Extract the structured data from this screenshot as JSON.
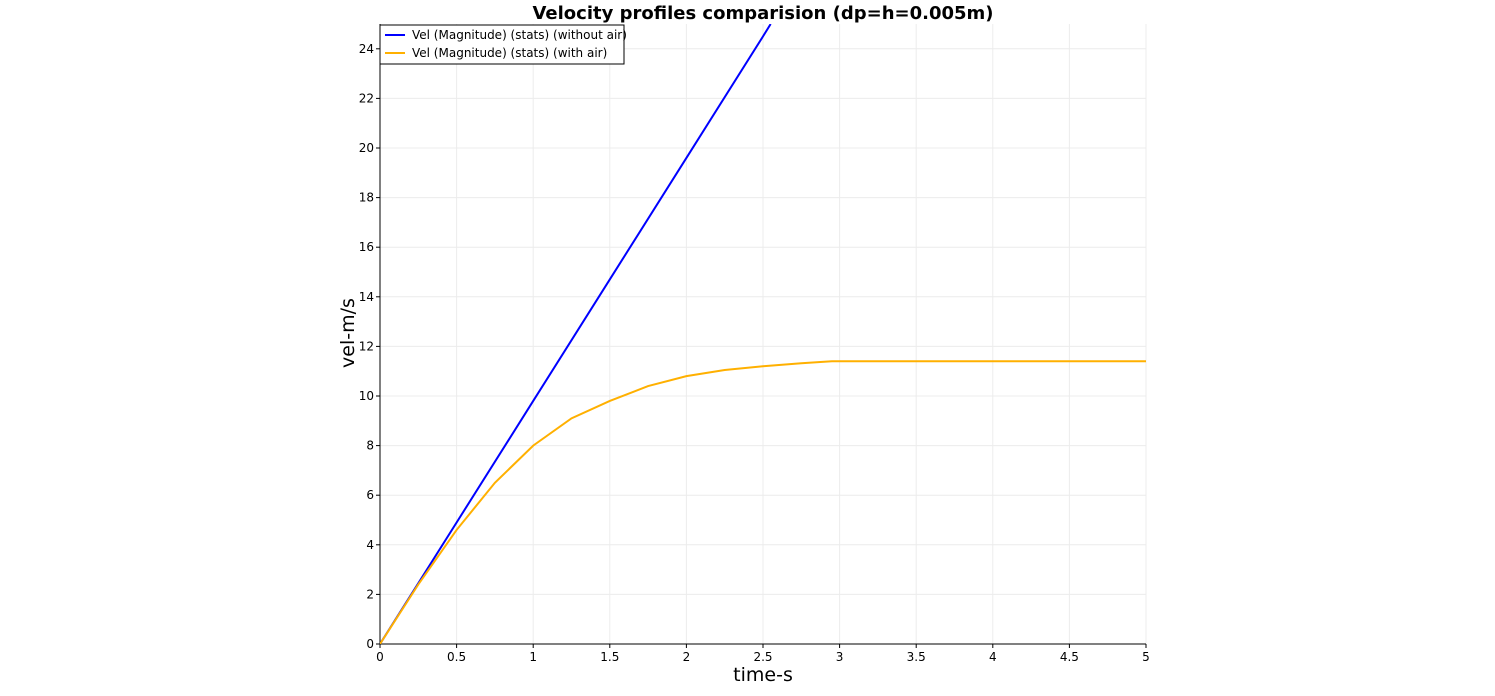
{
  "chart_data": {
    "type": "line",
    "title": "Velocity profiles comparision (dp=h=0.005m)",
    "xlabel": "time-s",
    "ylabel": "vel-m/s",
    "xlim": [
      0,
      5
    ],
    "ylim": [
      0,
      25
    ],
    "x_ticks": [
      "0",
      "0.5",
      "1",
      "1.5",
      "2",
      "2.5",
      "3",
      "3.5",
      "4",
      "4.5",
      "5"
    ],
    "y_ticks": [
      "0",
      "2",
      "4",
      "6",
      "8",
      "10",
      "12",
      "14",
      "16",
      "18",
      "20",
      "22",
      "24"
    ],
    "grid": true,
    "legend_position": "top-left",
    "series": [
      {
        "name": "Vel (Magnitude) (stats) (without air)",
        "color": "#0000ff",
        "x": [
          0,
          0.5,
          1.0,
          1.5,
          2.0,
          2.5,
          2.55
        ],
        "y": [
          0,
          4.9,
          9.8,
          14.7,
          19.6,
          24.5,
          25.0
        ]
      },
      {
        "name": "Vel (Magnitude) (stats) (with air)",
        "color": "#ffb000",
        "x": [
          0,
          0.25,
          0.5,
          0.75,
          1.0,
          1.25,
          1.5,
          1.75,
          2.0,
          2.25,
          2.5,
          2.75,
          2.95,
          3.5,
          4.0,
          4.5,
          5.0
        ],
        "y": [
          0,
          2.4,
          4.6,
          6.5,
          8.0,
          9.1,
          9.8,
          10.4,
          10.8,
          11.05,
          11.2,
          11.32,
          11.4,
          11.4,
          11.4,
          11.4,
          11.4
        ]
      }
    ]
  }
}
